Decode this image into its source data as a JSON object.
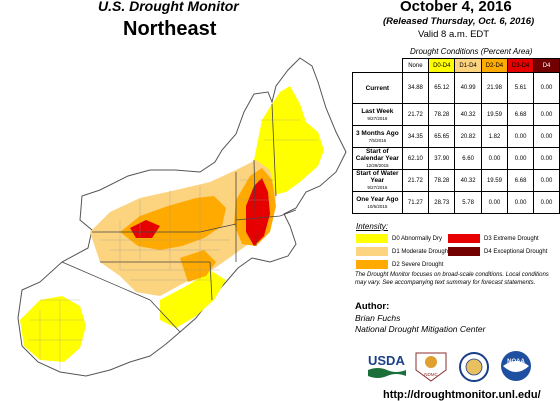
{
  "header": {
    "title": "U.S. Drought Monitor",
    "region": "Northeast",
    "date": "October 4, 2016",
    "released": "(Released Thursday, Oct. 6, 2016)",
    "valid": "Valid  8 a.m. EDT"
  },
  "table": {
    "caption": "Drought Conditions (Percent Area)",
    "columns": [
      "None",
      "D0-D4",
      "D1-D4",
      "D2-D4",
      "D3-D4",
      "D4"
    ],
    "column_colors": [
      "#ffffff",
      "#ffff00",
      "#fcd37f",
      "#ffaa00",
      "#e60000",
      "#730000"
    ],
    "rows": [
      {
        "label": "Current",
        "sub": "",
        "values": [
          "34.88",
          "65.12",
          "40.99",
          "21.98",
          "5.61",
          "0.00"
        ]
      },
      {
        "label": "Last Week",
        "sub": "9/27/2016",
        "values": [
          "21.72",
          "78.28",
          "40.32",
          "19.59",
          "6.68",
          "0.00"
        ]
      },
      {
        "label": "3 Months Ago",
        "sub": "7/5/2016",
        "values": [
          "34.35",
          "65.65",
          "20.82",
          "1.82",
          "0.00",
          "0.00"
        ]
      },
      {
        "label": "Start of Calendar Year",
        "sub": "12/29/2015",
        "values": [
          "62.10",
          "37.90",
          "6.60",
          "0.00",
          "0.00",
          "0.00"
        ]
      },
      {
        "label": "Start of Water Year",
        "sub": "9/27/2016",
        "values": [
          "21.72",
          "78.28",
          "40.32",
          "19.59",
          "6.68",
          "0.00"
        ]
      },
      {
        "label": "One Year Ago",
        "sub": "10/6/2015",
        "values": [
          "71.27",
          "28.73",
          "5.78",
          "0.00",
          "0.00",
          "0.00"
        ]
      }
    ]
  },
  "legend": {
    "label": "Intensity:",
    "items": [
      {
        "label": "D0 Abnormally Dry",
        "color": "#ffff00"
      },
      {
        "label": "D1 Moderate Drought",
        "color": "#fcd37f"
      },
      {
        "label": "D2 Severe Drought",
        "color": "#ffaa00"
      },
      {
        "label": "D3 Extreme Drought",
        "color": "#e60000"
      },
      {
        "label": "D4 Exceptional Drought",
        "color": "#730000"
      }
    ]
  },
  "note": "The Drought Monitor focuses on broad-scale conditions. Local conditions may vary. See accompanying text summary for forecast statements.",
  "author": {
    "label": "Author:",
    "name": "Brian Fuchs",
    "org": "National Drought Mitigation Center"
  },
  "logos": {
    "usda": "USDA",
    "ndmc": "National Drought Mitigation Center",
    "commerce": "Department of Commerce seal",
    "noaa": "NOAA"
  },
  "url": "http://droughtmonitor.unl.edu/"
}
